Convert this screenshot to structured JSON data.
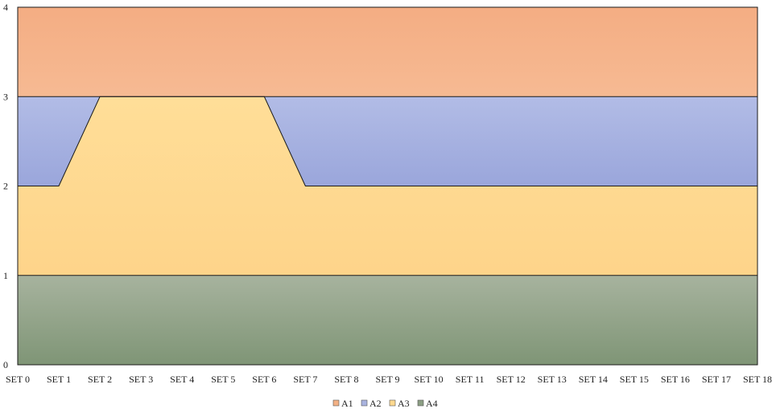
{
  "chart_data": {
    "type": "area",
    "stacked": true,
    "title": "",
    "xlabel": "",
    "ylabel": "",
    "ylim": [
      0,
      4
    ],
    "yticks": [
      0,
      1,
      2,
      3,
      4
    ],
    "grid": false,
    "legend_position": "bottom",
    "categories": [
      "SET 0",
      "SET 1",
      "SET 2",
      "SET 3",
      "SET 4",
      "SET 5",
      "SET 6",
      "SET 7",
      "SET 8",
      "SET 9",
      "SET 10",
      "SET 11",
      "SET 12",
      "SET 13",
      "SET 14",
      "SET 15",
      "SET 16",
      "SET 17",
      "SET 18"
    ],
    "series": [
      {
        "name": "A4",
        "color": "#8c9f84",
        "values": [
          1,
          1,
          1,
          1,
          1,
          1,
          1,
          1,
          1,
          1,
          1,
          1,
          1,
          1,
          1,
          1,
          1,
          1,
          1
        ]
      },
      {
        "name": "A3",
        "color": "#ffd98f",
        "values": [
          1,
          1,
          2,
          2,
          2,
          2,
          2,
          1,
          1,
          1,
          1,
          1,
          1,
          1,
          1,
          1,
          1,
          1,
          1
        ]
      },
      {
        "name": "A2",
        "color": "#a9b3df",
        "values": [
          1,
          1,
          0,
          0,
          0,
          0,
          0,
          1,
          1,
          1,
          1,
          1,
          1,
          1,
          1,
          1,
          1,
          1,
          1
        ]
      },
      {
        "name": "A1",
        "color": "#f3b185",
        "values": [
          1,
          1,
          1,
          1,
          1,
          1,
          1,
          1,
          1,
          1,
          1,
          1,
          1,
          1,
          1,
          1,
          1,
          1,
          1
        ]
      }
    ],
    "legend": [
      "A1",
      "A2",
      "A3",
      "A4"
    ]
  }
}
